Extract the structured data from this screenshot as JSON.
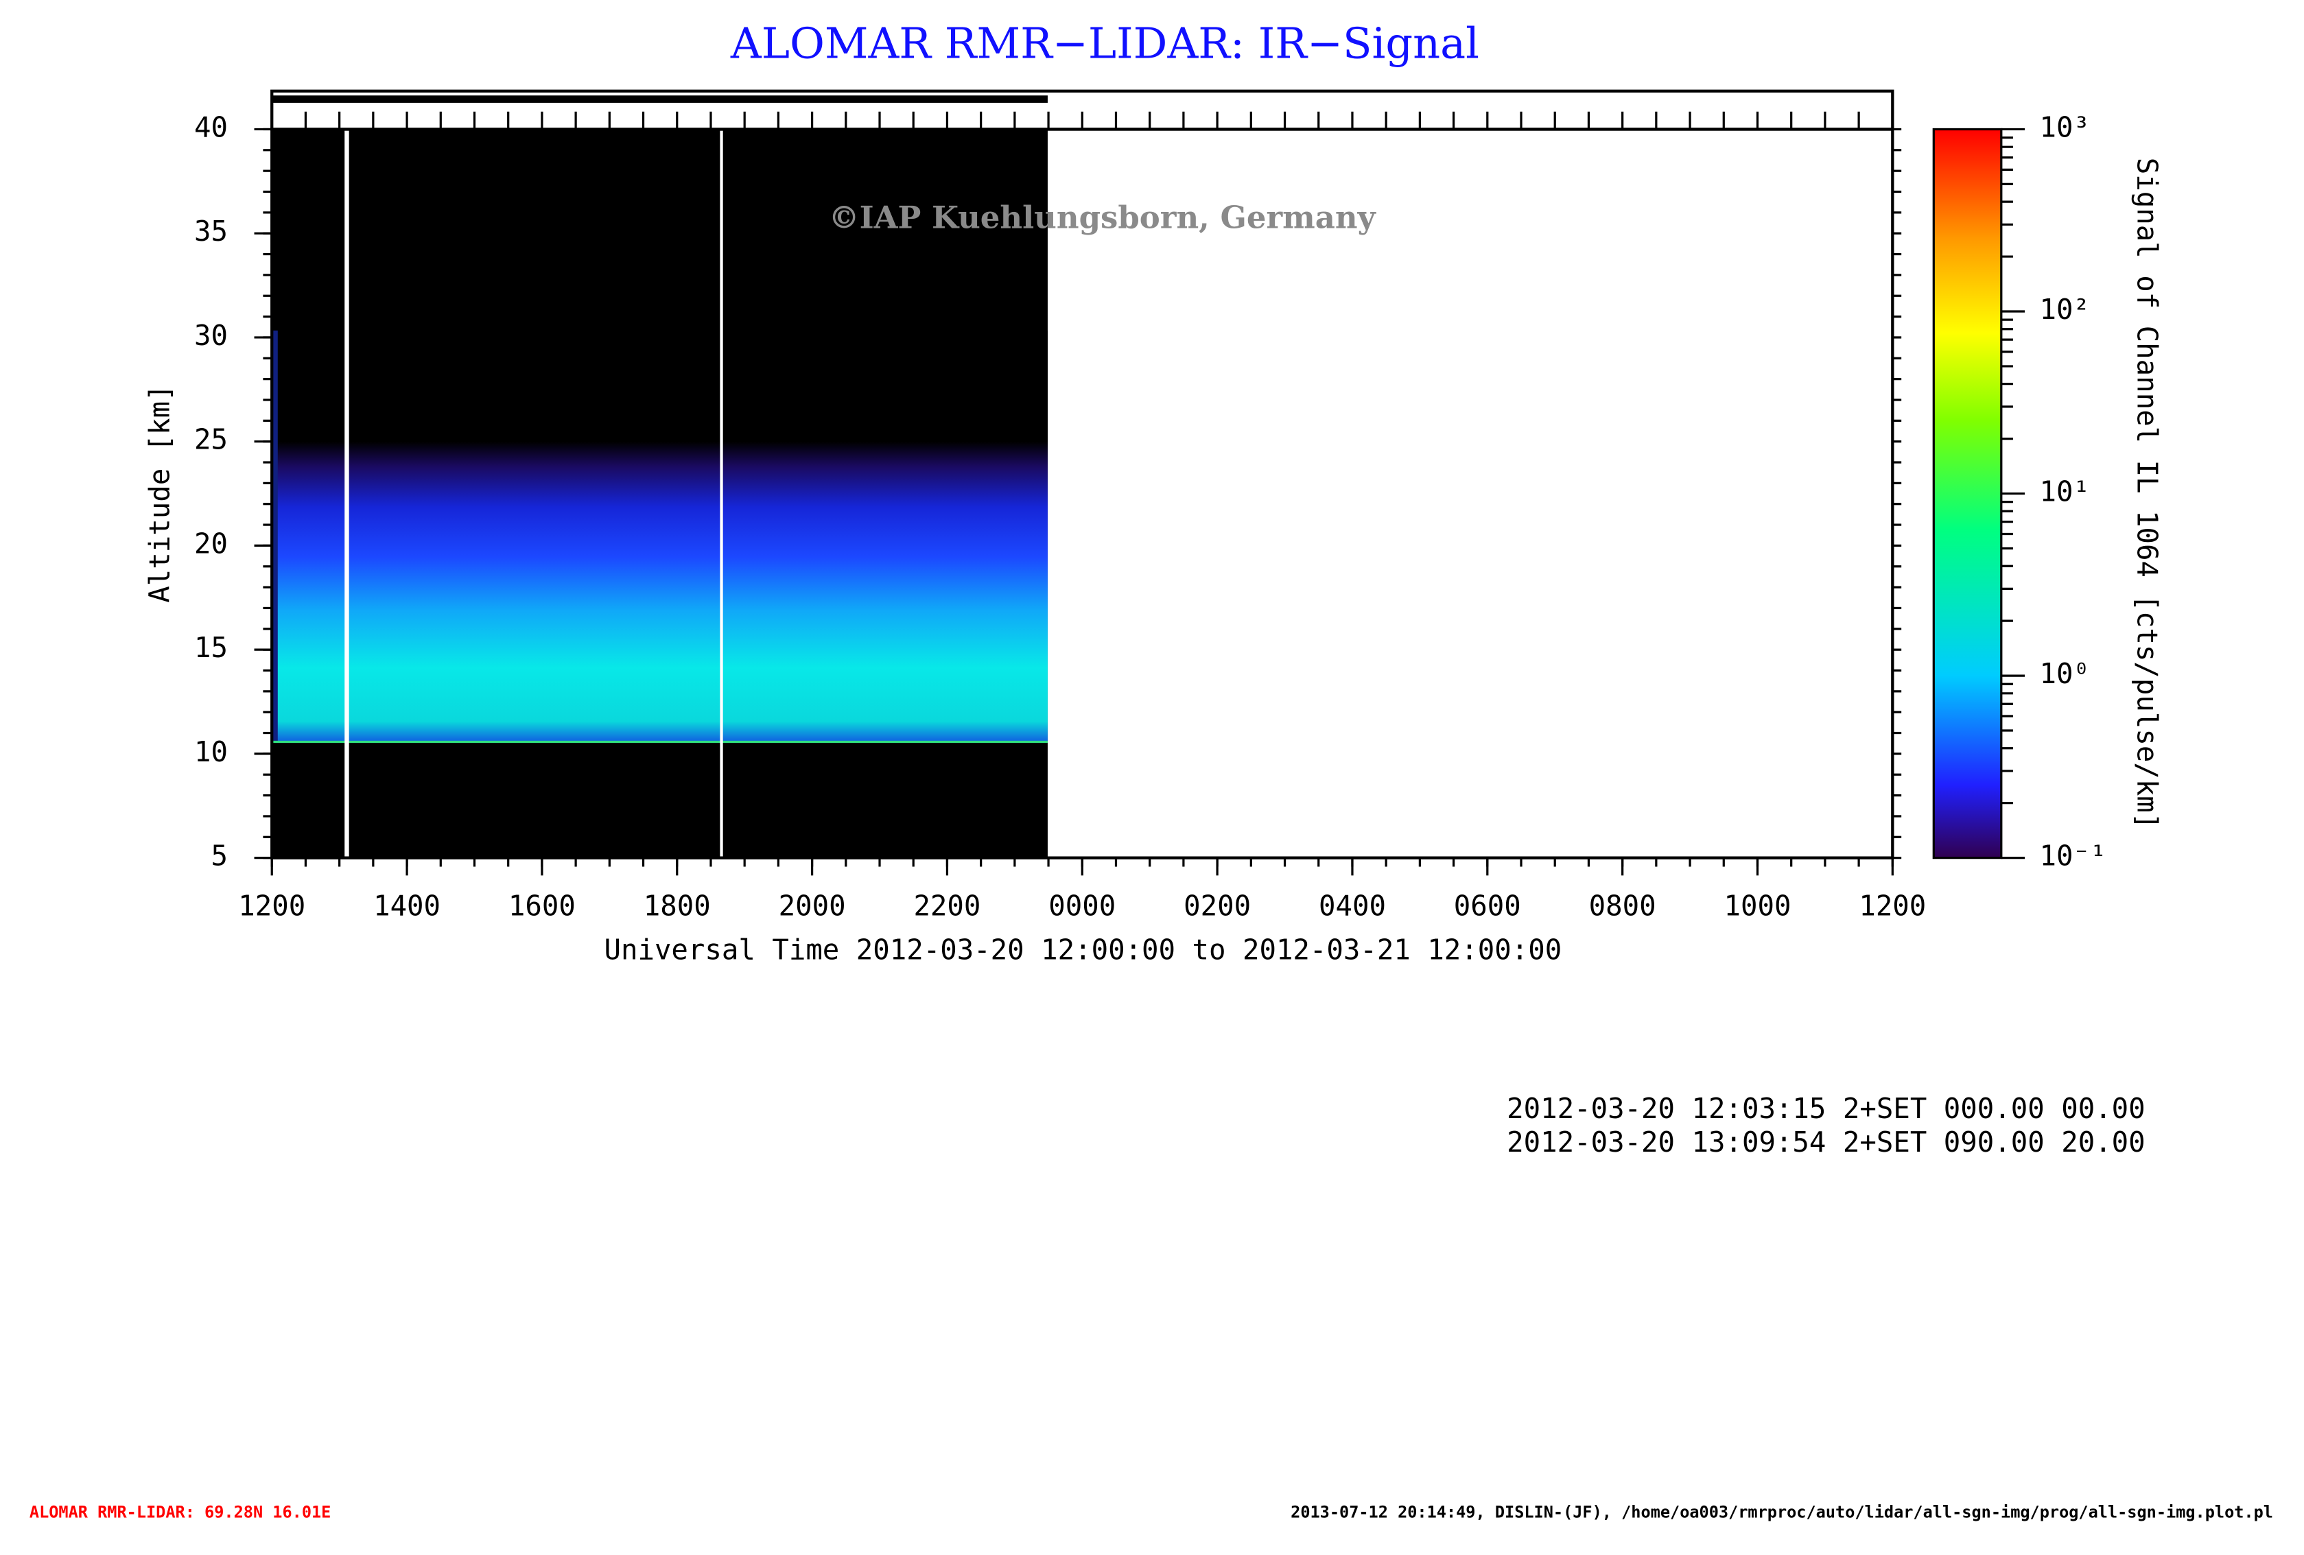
{
  "chart_data": {
    "type": "heatmap",
    "title": "ALOMAR RMR−LIDAR: IR−Signal",
    "watermark": "©IAP Kuehlungsborn, Germany",
    "x_label": "Universal Time 2012-03-20 12:00:00 to 2012-03-21 12:00:00",
    "y_label": "Altitude [km]",
    "colorbar_label": "Signal of Channel IL 1064 [cts/pulse/km]",
    "xlim": [
      0,
      24
    ],
    "xticks": [
      {
        "value": 0,
        "label": "1200"
      },
      {
        "value": 2,
        "label": "1400"
      },
      {
        "value": 4,
        "label": "1600"
      },
      {
        "value": 6,
        "label": "1800"
      },
      {
        "value": 8,
        "label": "2000"
      },
      {
        "value": 10,
        "label": "2200"
      },
      {
        "value": 12,
        "label": "0000"
      },
      {
        "value": 14,
        "label": "0200"
      },
      {
        "value": 16,
        "label": "0400"
      },
      {
        "value": 18,
        "label": "0600"
      },
      {
        "value": 20,
        "label": "0800"
      },
      {
        "value": 22,
        "label": "1000"
      },
      {
        "value": 24,
        "label": "1200"
      }
    ],
    "ylim": [
      5,
      40
    ],
    "yticks": [
      5,
      10,
      15,
      20,
      25,
      30,
      35,
      40
    ],
    "clim": [
      0.1,
      1000
    ],
    "log_color_scale": true,
    "cticks": [
      {
        "value": 0.1,
        "label": "10⁻¹"
      },
      {
        "value": 1,
        "label": "10⁰"
      },
      {
        "value": 10,
        "label": "10¹"
      },
      {
        "value": 100,
        "label": "10²"
      },
      {
        "value": 1000,
        "label": "10³"
      }
    ],
    "info_lines": [
      "2012-03-20 12:03:15 2+SET 000.00 00.00",
      "2012-03-20 13:09:54 2+SET 090.00 20.00"
    ],
    "footer_left": "ALOMAR RMR-LIDAR: 69.28N 16.01E",
    "footer_right": "2013-07-12 20:14:49, DISLIN-(JF), /home/oa003/rmrproc/auto/lidar/all-sgn-img/prog/all-sgn-img.plot.pl"
  }
}
